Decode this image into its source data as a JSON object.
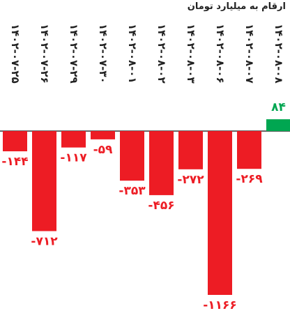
{
  "chart_data": {
    "type": "bar",
    "subtitle": "ارقام به میلیارد تومان",
    "categories": [
      "۱۴۰۲-۰۷-۲۵",
      "۱۴۰۲-۰۷-۲۶",
      "۱۴۰۲-۰۷-۲۹",
      "۱۴۰۲-۰۷-۳۰",
      "۱۴۰۲-۰۸-۰۱",
      "۱۴۰۲-۰۸-۰۲",
      "۱۴۰۲-۰۸-۰۳",
      "۱۴۰۲-۰۸-۰۶",
      "۱۴۰۲-۰۸-۰۷",
      "۱۴۰۲-۰۸-۰۸"
    ],
    "values": [
      -144,
      -712,
      -117,
      -59,
      -353,
      -456,
      -272,
      -1166,
      -269,
      84
    ],
    "value_labels": [
      "-۱۴۴",
      "-۷۱۲",
      "-۱۱۷",
      "-۵۹",
      "-۳۵۳",
      "-۴۵۶",
      "-۲۷۲",
      "-۱۱۶۶",
      "-۲۶۹",
      "۸۴"
    ],
    "colors": {
      "negative": "#ed1c24",
      "positive": "#00a651",
      "axis": "#333333"
    }
  }
}
